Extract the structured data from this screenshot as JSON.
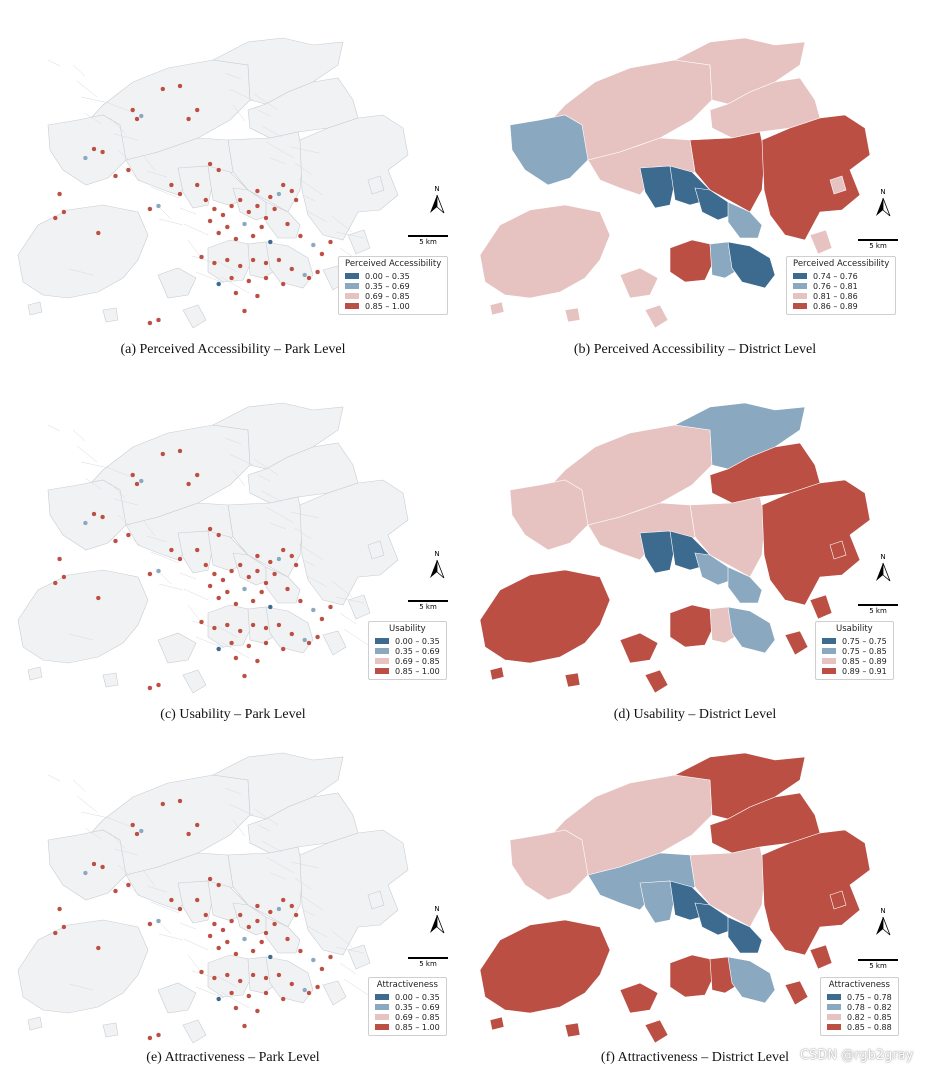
{
  "colors": {
    "class1": "#3d6a8f",
    "class2": "#8aa8bf",
    "class3": "#e6c3c1",
    "class4": "#bb4f44",
    "basemap": "#f1f2f4",
    "basemap_edge": "#c9ccd1"
  },
  "panels": [
    {
      "caption": "(a) Perceived Accessibility – Park Level",
      "legend_title": "Perceived Accessibility",
      "classes": [
        "0.00 – 0.35",
        "0.35 – 0.69",
        "0.69 – 0.85",
        "0.85 – 1.00"
      ],
      "north_label": "N",
      "scale_label": "5 km"
    },
    {
      "caption": "(b) Perceived Accessibility – District Level",
      "legend_title": "Perceived Accessibility",
      "classes": [
        "0.74 – 0.76",
        "0.76 – 0.81",
        "0.81 – 0.86",
        "0.86 – 0.89"
      ],
      "north_label": "N",
      "scale_label": "5 km"
    },
    {
      "caption": "(c) Usability – Park Level",
      "legend_title": "Usability",
      "classes": [
        "0.00 – 0.35",
        "0.35 – 0.69",
        "0.69 – 0.85",
        "0.85 – 1.00"
      ],
      "north_label": "N",
      "scale_label": "5 km"
    },
    {
      "caption": "(d) Usability – District Level",
      "legend_title": "Usability",
      "classes": [
        "0.75 – 0.75",
        "0.75 – 0.85",
        "0.85 – 0.89",
        "0.89 – 0.91"
      ],
      "north_label": "N",
      "scale_label": "5 km"
    },
    {
      "caption": "(e) Attractiveness – Park Level",
      "legend_title": "Attractiveness",
      "classes": [
        "0.00 – 0.35",
        "0.35 – 0.69",
        "0.69 – 0.85",
        "0.85 – 1.00"
      ],
      "north_label": "N",
      "scale_label": "5 km"
    },
    {
      "caption": "(f) Attractiveness – District Level",
      "legend_title": "Attractiveness",
      "classes": [
        "0.75 – 0.78",
        "0.78 – 0.82",
        "0.82 – 0.85",
        "0.85 – 0.88"
      ],
      "north_label": "N",
      "scale_label": "5 km"
    }
  ],
  "district_classes": {
    "b": {
      "tuenmun": "class2",
      "yuenlong": "class3",
      "north": "class3",
      "taipo": "class3",
      "shatin": "class4",
      "saikung": "class4",
      "tsuenwan": "class3",
      "kwaitsing": "class1",
      "shamshuipo": "class1",
      "kowloon": "class1",
      "kwuntong": "class2",
      "islands": "class3",
      "hkwest": "class4",
      "hkmid": "class2",
      "hkeast": "class1"
    },
    "d": {
      "tuenmun": "class3",
      "yuenlong": "class3",
      "north": "class2",
      "taipo": "class4",
      "shatin": "class3",
      "saikung": "class4",
      "tsuenwan": "class3",
      "kwaitsing": "class1",
      "shamshuipo": "class1",
      "kowloon": "class2",
      "kwuntong": "class2",
      "islands": "class4",
      "hkwest": "class4",
      "hkmid": "class3",
      "hkeast": "class2"
    },
    "f": {
      "tuenmun": "class3",
      "yuenlong": "class3",
      "north": "class4",
      "taipo": "class4",
      "shatin": "class3",
      "saikung": "class4",
      "tsuenwan": "class2",
      "kwaitsing": "class2",
      "shamshuipo": "class1",
      "kowloon": "class1",
      "kwuntong": "class1",
      "islands": "class4",
      "hkwest": "class4",
      "hkmid": "class4",
      "hkeast": "class2"
    }
  },
  "parks": [
    {
      "x": 12,
      "y": 58,
      "c": "class4"
    },
    {
      "x": 11,
      "y": 66,
      "c": "class4"
    },
    {
      "x": 13,
      "y": 64,
      "c": "class4"
    },
    {
      "x": 20,
      "y": 43,
      "c": "class4"
    },
    {
      "x": 22,
      "y": 44,
      "c": "class4"
    },
    {
      "x": 18,
      "y": 46,
      "c": "class2"
    },
    {
      "x": 25,
      "y": 52,
      "c": "class4"
    },
    {
      "x": 28,
      "y": 50,
      "c": "class4"
    },
    {
      "x": 29,
      "y": 30,
      "c": "class4"
    },
    {
      "x": 30,
      "y": 33,
      "c": "class4"
    },
    {
      "x": 31,
      "y": 32,
      "c": "class2"
    },
    {
      "x": 36,
      "y": 23,
      "c": "class4"
    },
    {
      "x": 40,
      "y": 22,
      "c": "class4"
    },
    {
      "x": 42,
      "y": 33,
      "c": "class4"
    },
    {
      "x": 44,
      "y": 30,
      "c": "class4"
    },
    {
      "x": 38,
      "y": 55,
      "c": "class4"
    },
    {
      "x": 40,
      "y": 58,
      "c": "class4"
    },
    {
      "x": 35,
      "y": 62,
      "c": "class2"
    },
    {
      "x": 33,
      "y": 63,
      "c": "class4"
    },
    {
      "x": 44,
      "y": 55,
      "c": "class4"
    },
    {
      "x": 46,
      "y": 60,
      "c": "class4"
    },
    {
      "x": 48,
      "y": 63,
      "c": "class4"
    },
    {
      "x": 50,
      "y": 65,
      "c": "class4"
    },
    {
      "x": 52,
      "y": 62,
      "c": "class4"
    },
    {
      "x": 54,
      "y": 60,
      "c": "class4"
    },
    {
      "x": 56,
      "y": 64,
      "c": "class4"
    },
    {
      "x": 58,
      "y": 62,
      "c": "class4"
    },
    {
      "x": 47,
      "y": 67,
      "c": "class4"
    },
    {
      "x": 51,
      "y": 69,
      "c": "class4"
    },
    {
      "x": 55,
      "y": 68,
      "c": "class2"
    },
    {
      "x": 59,
      "y": 69,
      "c": "class4"
    },
    {
      "x": 60,
      "y": 66,
      "c": "class4"
    },
    {
      "x": 62,
      "y": 63,
      "c": "class4"
    },
    {
      "x": 65,
      "y": 68,
      "c": "class4"
    },
    {
      "x": 66,
      "y": 57,
      "c": "class4"
    },
    {
      "x": 64,
      "y": 55,
      "c": "class4"
    },
    {
      "x": 68,
      "y": 72,
      "c": "class4"
    },
    {
      "x": 49,
      "y": 71,
      "c": "class4"
    },
    {
      "x": 53,
      "y": 73,
      "c": "class4"
    },
    {
      "x": 57,
      "y": 72,
      "c": "class4"
    },
    {
      "x": 61,
      "y": 74,
      "c": "class1"
    },
    {
      "x": 45,
      "y": 79,
      "c": "class4"
    },
    {
      "x": 48,
      "y": 81,
      "c": "class4"
    },
    {
      "x": 51,
      "y": 80,
      "c": "class4"
    },
    {
      "x": 54,
      "y": 82,
      "c": "class4"
    },
    {
      "x": 57,
      "y": 80,
      "c": "class4"
    },
    {
      "x": 60,
      "y": 81,
      "c": "class4"
    },
    {
      "x": 63,
      "y": 80,
      "c": "class4"
    },
    {
      "x": 66,
      "y": 83,
      "c": "class4"
    },
    {
      "x": 69,
      "y": 85,
      "c": "class2"
    },
    {
      "x": 70,
      "y": 86,
      "c": "class4"
    },
    {
      "x": 52,
      "y": 86,
      "c": "class4"
    },
    {
      "x": 56,
      "y": 87,
      "c": "class4"
    },
    {
      "x": 60,
      "y": 86,
      "c": "class4"
    },
    {
      "x": 64,
      "y": 88,
      "c": "class4"
    },
    {
      "x": 72,
      "y": 84,
      "c": "class4"
    },
    {
      "x": 49,
      "y": 88,
      "c": "class1"
    },
    {
      "x": 53,
      "y": 91,
      "c": "class4"
    },
    {
      "x": 58,
      "y": 92,
      "c": "class4"
    },
    {
      "x": 55,
      "y": 97,
      "c": "class4"
    },
    {
      "x": 35,
      "y": 100,
      "c": "class4"
    },
    {
      "x": 33,
      "y": 101,
      "c": "class4"
    },
    {
      "x": 21,
      "y": 71,
      "c": "class4"
    },
    {
      "x": 47,
      "y": 48,
      "c": "class4"
    },
    {
      "x": 49,
      "y": 50,
      "c": "class4"
    },
    {
      "x": 63,
      "y": 58,
      "c": "class2"
    },
    {
      "x": 67,
      "y": 60,
      "c": "class4"
    },
    {
      "x": 71,
      "y": 75,
      "c": "class2"
    },
    {
      "x": 73,
      "y": 78,
      "c": "class4"
    },
    {
      "x": 75,
      "y": 74,
      "c": "class4"
    },
    {
      "x": 58,
      "y": 57,
      "c": "class4"
    },
    {
      "x": 61,
      "y": 59,
      "c": "class4"
    }
  ],
  "watermark": "CSDN @rgb2gray"
}
